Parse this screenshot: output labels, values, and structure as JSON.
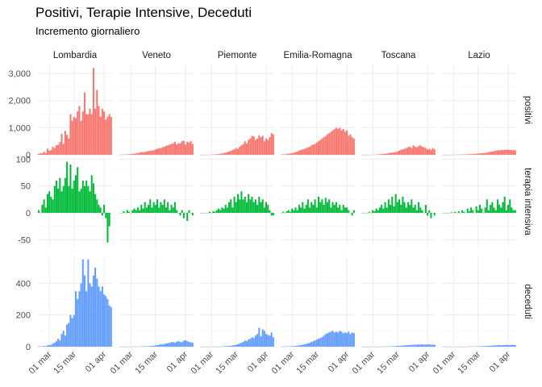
{
  "title": "Positivi, Terapie Intensive, Deceduti",
  "subtitle": "Incremento giornaliero",
  "chart_data": {
    "type": "bar",
    "facet_columns": [
      "Lombardia",
      "Veneto",
      "Piemonte",
      "Emilia-Romagna",
      "Toscana",
      "Lazio"
    ],
    "facet_rows": [
      {
        "key": "positivi",
        "label": "positivi",
        "color": "#F8766D",
        "ylim": [
          0,
          3300
        ],
        "yticks": [
          0,
          1000,
          2000,
          3000
        ],
        "ytick_labels": [
          "0",
          "1,000",
          "2,000",
          "3,000"
        ]
      },
      {
        "key": "terapia",
        "label": "terapia intensiva",
        "color": "#00BA38",
        "ylim": [
          -63,
          105
        ],
        "yticks": [
          -50,
          0,
          50,
          100
        ],
        "ytick_labels": [
          "-50",
          "0",
          "50",
          "100"
        ]
      },
      {
        "key": "deceduti",
        "label": "deceduti",
        "color": "#619CFF",
        "ylim": [
          0,
          570
        ],
        "yticks": [
          0,
          200,
          400
        ],
        "ytick_labels": [
          "0",
          "200",
          "400"
        ]
      }
    ],
    "x": {
      "start": "2020-02-24",
      "end": "2020-04-05",
      "ticks": [
        "2020-03-01",
        "2020-03-15",
        "2020-04-01"
      ],
      "tick_labels": [
        "01 mar",
        "15 mar",
        "01 apr"
      ]
    },
    "series": {
      "Lombardia": {
        "positivi": [
          35,
          55,
          60,
          110,
          60,
          230,
          150,
          180,
          300,
          250,
          350,
          370,
          470,
          770,
          400,
          880,
          740,
          600,
          1500,
          1250,
          1400,
          1350,
          1600,
          1800,
          1250,
          1600,
          2300,
          1500,
          1500,
          1700,
          1500,
          3200,
          1700,
          2400,
          1800,
          1400,
          1700,
          1600,
          1300,
          1400,
          1500,
          1400
        ],
        "terapia": [
          5,
          0,
          15,
          25,
          10,
          35,
          40,
          30,
          25,
          50,
          60,
          45,
          65,
          40,
          50,
          65,
          95,
          50,
          90,
          45,
          60,
          70,
          85,
          40,
          45,
          60,
          50,
          60,
          50,
          40,
          70,
          55,
          35,
          25,
          15,
          10,
          -5,
          15,
          -10,
          -55,
          -25,
          0
        ],
        "deceduti": [
          3,
          2,
          2,
          5,
          3,
          8,
          10,
          12,
          20,
          25,
          35,
          50,
          40,
          80,
          100,
          70,
          140,
          150,
          200,
          180,
          200,
          350,
          300,
          350,
          400,
          550,
          450,
          350,
          550,
          400,
          380,
          450,
          500,
          430,
          380,
          350,
          380,
          330,
          320,
          300,
          260,
          250
        ]
      },
      "Veneto": {
        "positivi": [
          0,
          5,
          10,
          15,
          10,
          20,
          25,
          30,
          40,
          50,
          60,
          80,
          100,
          90,
          110,
          120,
          140,
          150,
          160,
          170,
          200,
          220,
          250,
          240,
          280,
          300,
          330,
          350,
          380,
          400,
          420,
          480,
          380,
          430,
          420,
          500,
          520,
          380,
          480,
          450,
          500,
          400
        ],
        "terapia": [
          0,
          0,
          3,
          0,
          5,
          2,
          0,
          5,
          8,
          5,
          10,
          5,
          15,
          8,
          20,
          10,
          15,
          25,
          10,
          20,
          15,
          25,
          10,
          20,
          15,
          25,
          10,
          20,
          5,
          15,
          10,
          20,
          5,
          0,
          -5,
          5,
          -10,
          0,
          -15,
          5,
          0,
          -5
        ],
        "deceduti": [
          0,
          0,
          0,
          0,
          0,
          0,
          0,
          0,
          1,
          0,
          1,
          2,
          1,
          2,
          3,
          2,
          3,
          4,
          5,
          6,
          8,
          10,
          12,
          15,
          14,
          18,
          20,
          22,
          25,
          28,
          30,
          25,
          32,
          35,
          30,
          28,
          38,
          40,
          35,
          30,
          28,
          25
        ]
      },
      "Piemonte": {
        "positivi": [
          0,
          0,
          0,
          3,
          2,
          3,
          5,
          10,
          15,
          20,
          25,
          40,
          50,
          60,
          80,
          100,
          120,
          150,
          180,
          200,
          250,
          220,
          300,
          350,
          400,
          500,
          420,
          550,
          600,
          700,
          680,
          550,
          600,
          720,
          650,
          700,
          500,
          600,
          550,
          650,
          800,
          750
        ],
        "terapia": [
          0,
          0,
          0,
          0,
          0,
          2,
          0,
          3,
          2,
          5,
          8,
          5,
          10,
          8,
          15,
          10,
          20,
          25,
          10,
          30,
          20,
          35,
          25,
          40,
          25,
          30,
          20,
          35,
          25,
          30,
          20,
          25,
          15,
          30,
          20,
          25,
          10,
          20,
          15,
          5,
          -5,
          -5
        ],
        "deceduti": [
          0,
          0,
          0,
          0,
          0,
          0,
          0,
          0,
          0,
          0,
          1,
          0,
          2,
          3,
          2,
          5,
          4,
          6,
          8,
          10,
          12,
          15,
          20,
          25,
          30,
          40,
          35,
          45,
          50,
          60,
          55,
          70,
          80,
          120,
          65,
          110,
          100,
          80,
          75,
          70,
          90,
          60
        ]
      },
      "Emilia-Romagna": {
        "positivi": [
          10,
          20,
          15,
          30,
          40,
          50,
          60,
          80,
          100,
          120,
          150,
          180,
          200,
          220,
          250,
          270,
          300,
          350,
          380,
          400,
          450,
          500,
          550,
          600,
          650,
          700,
          750,
          800,
          850,
          900,
          950,
          1000,
          950,
          1000,
          900,
          950,
          850,
          900,
          700,
          750,
          650,
          600
        ],
        "terapia": [
          0,
          2,
          0,
          3,
          5,
          2,
          8,
          5,
          10,
          5,
          15,
          10,
          20,
          8,
          15,
          25,
          10,
          20,
          15,
          25,
          10,
          30,
          20,
          25,
          15,
          28,
          20,
          25,
          10,
          20,
          15,
          20,
          10,
          15,
          5,
          15,
          10,
          10,
          5,
          0,
          -5,
          5
        ],
        "deceduti": [
          1,
          0,
          1,
          2,
          1,
          2,
          3,
          4,
          5,
          6,
          8,
          10,
          12,
          15,
          18,
          20,
          25,
          30,
          35,
          40,
          45,
          50,
          55,
          60,
          70,
          80,
          85,
          90,
          95,
          100,
          90,
          95,
          90,
          100,
          95,
          85,
          90,
          85,
          95,
          80,
          90,
          85
        ]
      },
      "Toscana": {
        "positivi": [
          0,
          0,
          0,
          2,
          3,
          2,
          5,
          8,
          10,
          15,
          20,
          25,
          30,
          40,
          50,
          60,
          70,
          80,
          90,
          100,
          120,
          150,
          180,
          200,
          220,
          250,
          280,
          300,
          250,
          350,
          300,
          280,
          320,
          350,
          300,
          280,
          250,
          200,
          220,
          180,
          250,
          200
        ],
        "terapia": [
          0,
          0,
          0,
          0,
          2,
          0,
          5,
          3,
          8,
          5,
          10,
          15,
          8,
          20,
          10,
          25,
          15,
          30,
          12,
          35,
          20,
          25,
          15,
          30,
          20,
          10,
          20,
          15,
          25,
          10,
          15,
          5,
          20,
          10,
          5,
          0,
          15,
          -5,
          5,
          -10,
          0,
          -5
        ],
        "deceduti": [
          0,
          0,
          0,
          0,
          0,
          0,
          0,
          0,
          0,
          0,
          0,
          1,
          0,
          1,
          2,
          1,
          2,
          3,
          3,
          4,
          5,
          5,
          6,
          7,
          8,
          9,
          10,
          10,
          12,
          11,
          13,
          12,
          14,
          13,
          15,
          12,
          14,
          13,
          15,
          12,
          13,
          12
        ]
      },
      "Lazio": {
        "positivi": [
          0,
          0,
          0,
          0,
          2,
          1,
          3,
          2,
          5,
          5,
          8,
          10,
          12,
          15,
          18,
          20,
          25,
          30,
          35,
          40,
          45,
          50,
          55,
          60,
          70,
          80,
          100,
          110,
          120,
          140,
          150,
          160,
          170,
          180,
          175,
          180,
          190,
          185,
          180,
          175,
          170,
          165
        ],
        "terapia": [
          0,
          0,
          0,
          0,
          0,
          1,
          0,
          2,
          0,
          3,
          0,
          5,
          2,
          0,
          8,
          3,
          10,
          5,
          0,
          12,
          5,
          15,
          8,
          0,
          10,
          25,
          5,
          15,
          20,
          10,
          5,
          25,
          15,
          10,
          20,
          30,
          5,
          15,
          25,
          10,
          5,
          5
        ],
        "deceduti": [
          0,
          0,
          0,
          0,
          0,
          0,
          0,
          0,
          0,
          0,
          0,
          0,
          0,
          0,
          0,
          1,
          1,
          1,
          2,
          2,
          2,
          3,
          3,
          4,
          4,
          5,
          5,
          6,
          7,
          8,
          8,
          9,
          10,
          9,
          11,
          10,
          12,
          11,
          10,
          12,
          11,
          10
        ]
      }
    }
  }
}
